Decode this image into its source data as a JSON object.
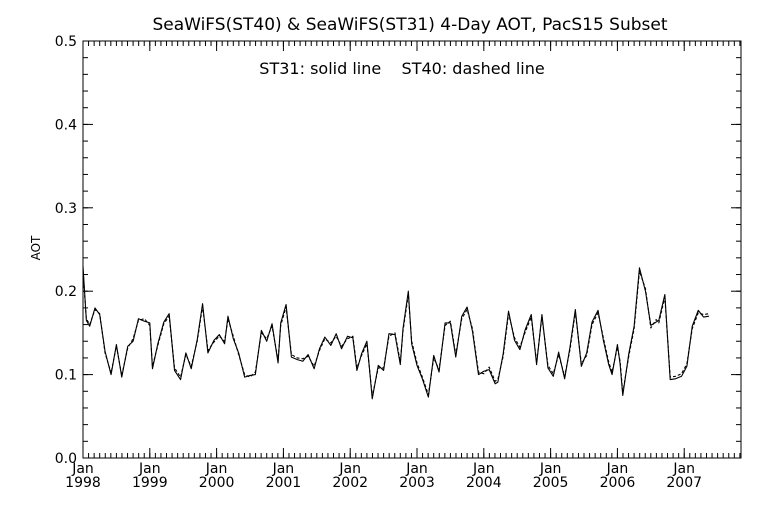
{
  "chart_data": {
    "type": "line",
    "title": "SeaWiFS(ST40) & SeaWiFS(ST31) 4-Day AOT, PacS15 Subset",
    "annotation": "ST31: solid line    ST40: dashed line",
    "xlabel": "",
    "ylabel": "AOT",
    "ylim": [
      0.0,
      0.5
    ],
    "yticks": [
      "0.0",
      "0.1",
      "0.2",
      "0.3",
      "0.4",
      "0.5"
    ],
    "xlim": [
      1998.0,
      2007.85
    ],
    "xticks": [
      {
        "month": "Jan",
        "year": "1998"
      },
      {
        "month": "Jan",
        "year": "1999"
      },
      {
        "month": "Jan",
        "year": "2000"
      },
      {
        "month": "Jan",
        "year": "2001"
      },
      {
        "month": "Jan",
        "year": "2002"
      },
      {
        "month": "Jan",
        "year": "2003"
      },
      {
        "month": "Jan",
        "year": "2004"
      },
      {
        "month": "Jan",
        "year": "2005"
      },
      {
        "month": "Jan",
        "year": "2006"
      },
      {
        "month": "Jan",
        "year": "2007"
      }
    ],
    "grid": false,
    "series": [
      {
        "name": "ST31",
        "style": "solid",
        "color": "#000000",
        "points": [
          [
            1998.0,
            0.23
          ],
          [
            1998.05,
            0.165
          ],
          [
            1998.1,
            0.158
          ],
          [
            1998.18,
            0.18
          ],
          [
            1998.25,
            0.172
          ],
          [
            1998.33,
            0.128
          ],
          [
            1998.42,
            0.1
          ],
          [
            1998.5,
            0.136
          ],
          [
            1998.58,
            0.097
          ],
          [
            1998.67,
            0.134
          ],
          [
            1998.75,
            0.14
          ],
          [
            1998.83,
            0.167
          ],
          [
            1998.92,
            0.164
          ],
          [
            1999.0,
            0.162
          ],
          [
            1999.04,
            0.107
          ],
          [
            1999.12,
            0.137
          ],
          [
            1999.21,
            0.163
          ],
          [
            1999.29,
            0.173
          ],
          [
            1999.37,
            0.105
          ],
          [
            1999.46,
            0.094
          ],
          [
            1999.54,
            0.126
          ],
          [
            1999.62,
            0.107
          ],
          [
            1999.71,
            0.142
          ],
          [
            1999.79,
            0.185
          ],
          [
            1999.87,
            0.126
          ],
          [
            1999.96,
            0.141
          ],
          [
            2000.04,
            0.148
          ],
          [
            2000.12,
            0.137
          ],
          [
            2000.17,
            0.17
          ],
          [
            2000.25,
            0.143
          ],
          [
            2000.33,
            0.126
          ],
          [
            2000.42,
            0.097
          ],
          [
            2000.5,
            0.099
          ],
          [
            2000.58,
            0.1
          ],
          [
            2000.67,
            0.153
          ],
          [
            2000.75,
            0.14
          ],
          [
            2000.83,
            0.161
          ],
          [
            2000.92,
            0.114
          ],
          [
            2000.96,
            0.162
          ],
          [
            2001.04,
            0.184
          ],
          [
            2001.12,
            0.121
          ],
          [
            2001.21,
            0.118
          ],
          [
            2001.29,
            0.116
          ],
          [
            2001.37,
            0.124
          ],
          [
            2001.46,
            0.107
          ],
          [
            2001.54,
            0.131
          ],
          [
            2001.62,
            0.145
          ],
          [
            2001.71,
            0.135
          ],
          [
            2001.79,
            0.149
          ],
          [
            2001.87,
            0.131
          ],
          [
            2001.96,
            0.146
          ],
          [
            2002.04,
            0.144
          ],
          [
            2002.1,
            0.105
          ],
          [
            2002.17,
            0.125
          ],
          [
            2002.25,
            0.14
          ],
          [
            2002.33,
            0.071
          ],
          [
            2002.42,
            0.111
          ],
          [
            2002.5,
            0.105
          ],
          [
            2002.58,
            0.149
          ],
          [
            2002.67,
            0.148
          ],
          [
            2002.75,
            0.112
          ],
          [
            2002.79,
            0.155
          ],
          [
            2002.87,
            0.2
          ],
          [
            2002.92,
            0.137
          ],
          [
            2003.0,
            0.111
          ],
          [
            2003.08,
            0.095
          ],
          [
            2003.17,
            0.073
          ],
          [
            2003.25,
            0.123
          ],
          [
            2003.33,
            0.103
          ],
          [
            2003.42,
            0.162
          ],
          [
            2003.5,
            0.162
          ],
          [
            2003.58,
            0.121
          ],
          [
            2003.67,
            0.17
          ],
          [
            2003.75,
            0.181
          ],
          [
            2003.83,
            0.152
          ],
          [
            2003.92,
            0.1
          ],
          [
            2004.0,
            0.104
          ],
          [
            2004.08,
            0.106
          ],
          [
            2004.17,
            0.089
          ],
          [
            2004.21,
            0.091
          ],
          [
            2004.29,
            0.125
          ],
          [
            2004.37,
            0.176
          ],
          [
            2004.46,
            0.141
          ],
          [
            2004.54,
            0.13
          ],
          [
            2004.62,
            0.154
          ],
          [
            2004.71,
            0.172
          ],
          [
            2004.79,
            0.112
          ],
          [
            2004.87,
            0.172
          ],
          [
            2004.96,
            0.108
          ],
          [
            2005.04,
            0.098
          ],
          [
            2005.12,
            0.127
          ],
          [
            2005.21,
            0.095
          ],
          [
            2005.29,
            0.133
          ],
          [
            2005.37,
            0.178
          ],
          [
            2005.46,
            0.11
          ],
          [
            2005.54,
            0.126
          ],
          [
            2005.62,
            0.163
          ],
          [
            2005.71,
            0.177
          ],
          [
            2005.79,
            0.141
          ],
          [
            2005.87,
            0.112
          ],
          [
            2005.92,
            0.1
          ],
          [
            2006.0,
            0.136
          ],
          [
            2006.04,
            0.113
          ],
          [
            2006.08,
            0.075
          ],
          [
            2006.17,
            0.125
          ],
          [
            2006.25,
            0.158
          ],
          [
            2006.33,
            0.228
          ],
          [
            2006.42,
            0.2
          ],
          [
            2006.5,
            0.159
          ],
          [
            2006.58,
            0.163
          ],
          [
            2006.62,
            0.165
          ],
          [
            2006.71,
            0.196
          ],
          [
            2006.79,
            0.094
          ],
          [
            2006.87,
            0.095
          ],
          [
            2006.96,
            0.098
          ],
          [
            2007.04,
            0.11
          ],
          [
            2007.12,
            0.158
          ],
          [
            2007.21,
            0.177
          ],
          [
            2007.29,
            0.169
          ],
          [
            2007.37,
            0.17
          ]
        ]
      },
      {
        "name": "ST40",
        "style": "dashed",
        "color": "#000000",
        "points": [
          [
            1998.0,
            0.225
          ],
          [
            1998.05,
            0.167
          ],
          [
            1998.1,
            0.16
          ],
          [
            1998.18,
            0.178
          ],
          [
            1998.25,
            0.173
          ],
          [
            1998.33,
            0.126
          ],
          [
            1998.42,
            0.102
          ],
          [
            1998.5,
            0.134
          ],
          [
            1998.58,
            0.099
          ],
          [
            1998.67,
            0.132
          ],
          [
            1998.75,
            0.143
          ],
          [
            1998.83,
            0.165
          ],
          [
            1998.92,
            0.167
          ],
          [
            1999.0,
            0.159
          ],
          [
            1999.04,
            0.11
          ],
          [
            1999.12,
            0.135
          ],
          [
            1999.21,
            0.161
          ],
          [
            1999.29,
            0.17
          ],
          [
            1999.37,
            0.108
          ],
          [
            1999.46,
            0.097
          ],
          [
            1999.54,
            0.124
          ],
          [
            1999.62,
            0.11
          ],
          [
            1999.71,
            0.14
          ],
          [
            1999.79,
            0.182
          ],
          [
            1999.87,
            0.129
          ],
          [
            1999.96,
            0.139
          ],
          [
            2000.04,
            0.146
          ],
          [
            2000.12,
            0.14
          ],
          [
            2000.17,
            0.167
          ],
          [
            2000.25,
            0.146
          ],
          [
            2000.33,
            0.124
          ],
          [
            2000.42,
            0.1
          ],
          [
            2000.5,
            0.097
          ],
          [
            2000.58,
            0.103
          ],
          [
            2000.67,
            0.15
          ],
          [
            2000.75,
            0.143
          ],
          [
            2000.83,
            0.158
          ],
          [
            2000.92,
            0.117
          ],
          [
            2000.96,
            0.159
          ],
          [
            2001.04,
            0.181
          ],
          [
            2001.12,
            0.124
          ],
          [
            2001.21,
            0.12
          ],
          [
            2001.29,
            0.119
          ],
          [
            2001.37,
            0.122
          ],
          [
            2001.46,
            0.11
          ],
          [
            2001.54,
            0.129
          ],
          [
            2001.62,
            0.143
          ],
          [
            2001.71,
            0.138
          ],
          [
            2001.79,
            0.146
          ],
          [
            2001.87,
            0.134
          ],
          [
            2001.96,
            0.143
          ],
          [
            2002.04,
            0.146
          ],
          [
            2002.1,
            0.108
          ],
          [
            2002.17,
            0.123
          ],
          [
            2002.25,
            0.137
          ],
          [
            2002.33,
            0.074
          ],
          [
            2002.42,
            0.108
          ],
          [
            2002.5,
            0.108
          ],
          [
            2002.58,
            0.146
          ],
          [
            2002.67,
            0.15
          ],
          [
            2002.75,
            0.115
          ],
          [
            2002.79,
            0.152
          ],
          [
            2002.87,
            0.196
          ],
          [
            2002.92,
            0.14
          ],
          [
            2003.0,
            0.114
          ],
          [
            2003.08,
            0.097
          ],
          [
            2003.17,
            0.076
          ],
          [
            2003.25,
            0.12
          ],
          [
            2003.33,
            0.106
          ],
          [
            2003.42,
            0.159
          ],
          [
            2003.5,
            0.164
          ],
          [
            2003.58,
            0.124
          ],
          [
            2003.67,
            0.167
          ],
          [
            2003.75,
            0.178
          ],
          [
            2003.83,
            0.155
          ],
          [
            2003.92,
            0.103
          ],
          [
            2004.0,
            0.101
          ],
          [
            2004.08,
            0.109
          ],
          [
            2004.17,
            0.092
          ],
          [
            2004.21,
            0.094
          ],
          [
            2004.29,
            0.122
          ],
          [
            2004.37,
            0.173
          ],
          [
            2004.46,
            0.144
          ],
          [
            2004.54,
            0.133
          ],
          [
            2004.62,
            0.151
          ],
          [
            2004.71,
            0.169
          ],
          [
            2004.79,
            0.115
          ],
          [
            2004.87,
            0.169
          ],
          [
            2004.96,
            0.111
          ],
          [
            2005.04,
            0.101
          ],
          [
            2005.12,
            0.124
          ],
          [
            2005.21,
            0.098
          ],
          [
            2005.29,
            0.13
          ],
          [
            2005.37,
            0.175
          ],
          [
            2005.46,
            0.113
          ],
          [
            2005.54,
            0.123
          ],
          [
            2005.62,
            0.16
          ],
          [
            2005.71,
            0.174
          ],
          [
            2005.79,
            0.144
          ],
          [
            2005.87,
            0.115
          ],
          [
            2005.92,
            0.103
          ],
          [
            2006.0,
            0.133
          ],
          [
            2006.04,
            0.116
          ],
          [
            2006.08,
            0.078
          ],
          [
            2006.17,
            0.122
          ],
          [
            2006.25,
            0.155
          ],
          [
            2006.33,
            0.224
          ],
          [
            2006.42,
            0.203
          ],
          [
            2006.5,
            0.156
          ],
          [
            2006.58,
            0.166
          ],
          [
            2006.62,
            0.162
          ],
          [
            2006.71,
            0.193
          ],
          [
            2006.79,
            0.097
          ],
          [
            2006.87,
            0.098
          ],
          [
            2006.96,
            0.101
          ],
          [
            2007.04,
            0.113
          ],
          [
            2007.12,
            0.155
          ],
          [
            2007.21,
            0.174
          ],
          [
            2007.29,
            0.172
          ],
          [
            2007.37,
            0.173
          ]
        ]
      }
    ]
  }
}
